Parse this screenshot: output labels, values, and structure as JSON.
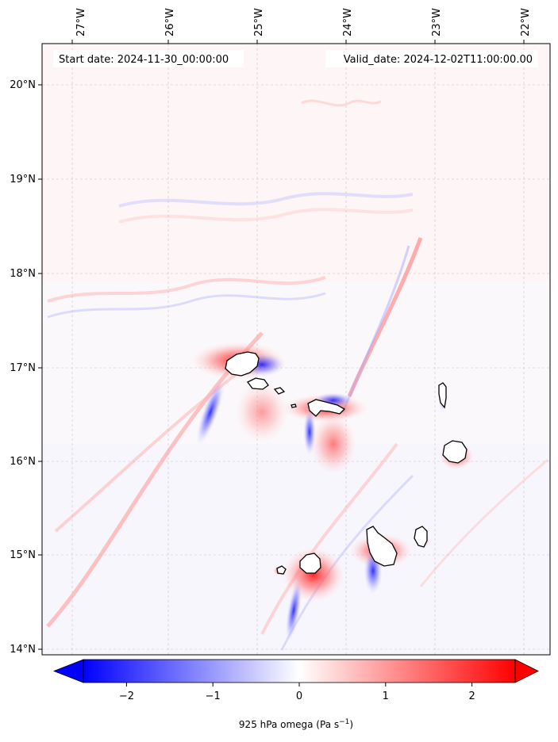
{
  "map": {
    "start_date": "Start date: 2024-11-30_00:00:00",
    "valid_date": "Valid_date: 2024-12-02T11:00:00.00",
    "lon_ticks": [
      "27°W",
      "26°W",
      "25°W",
      "24°W",
      "23°W",
      "22°W"
    ],
    "lat_ticks": [
      "20°N",
      "19°N",
      "18°N",
      "17°N",
      "16°N",
      "15°N",
      "14°N"
    ],
    "extent": {
      "lon_min": -27.35,
      "lon_max": -21.8,
      "lat_min": 13.95,
      "lat_max": 20.42
    },
    "islands": [
      "Santo Antão",
      "São Vicente",
      "Santa Luzia",
      "São Nicolau",
      "Sal",
      "Boa Vista",
      "Brava",
      "Fogo",
      "Santiago",
      "Maio"
    ],
    "colors": {
      "negative": "#0000ff",
      "neutral": "#ffffff",
      "positive": "#ff0000",
      "coast": "#000000"
    }
  },
  "colorbar": {
    "label_prefix": "925 hPa omega (Pa s",
    "label_exp": "−1",
    "label_suffix": ")",
    "ticks": [
      "−2",
      "−1",
      "0",
      "1",
      "2"
    ],
    "tick_values": [
      -2,
      -1,
      0,
      1,
      2
    ],
    "range": [
      -2.5,
      2.5
    ],
    "extend": "both",
    "colormap": "bwr"
  }
}
